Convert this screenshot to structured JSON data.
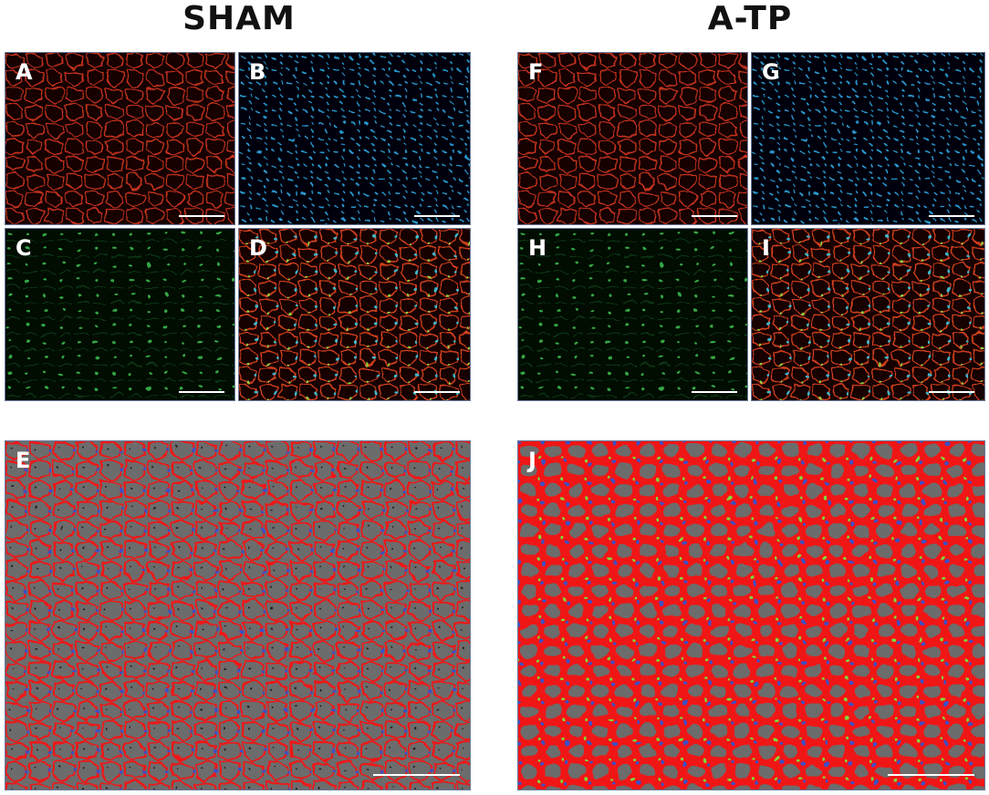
{
  "headers": {
    "left": "SHAM",
    "right": "A-TP"
  },
  "panels": [
    {
      "label": "A"
    },
    {
      "label": "B"
    },
    {
      "label": "C"
    },
    {
      "label": "D"
    },
    {
      "label": "E"
    },
    {
      "label": "F"
    },
    {
      "label": "G"
    },
    {
      "label": "H"
    },
    {
      "label": "I"
    },
    {
      "label": "J"
    }
  ]
}
